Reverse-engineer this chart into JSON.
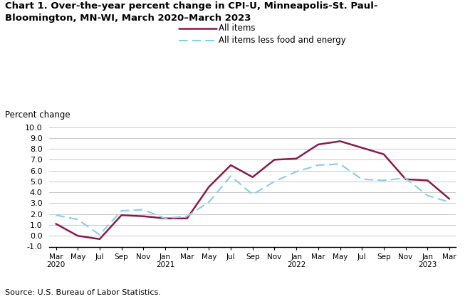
{
  "title_line1": "Chart 1. Over-the-year percent change in CPI-U, Minneapolis-St. Paul-",
  "title_line2": "Bloomington, MN-WI, March 2020–March 2023",
  "ylabel": "Percent change",
  "source": "Source: U.S. Bureau of Labor Statistics.",
  "ylim": [
    -1.0,
    10.0
  ],
  "yticks": [
    -1.0,
    0.0,
    1.0,
    2.0,
    3.0,
    4.0,
    5.0,
    6.0,
    7.0,
    8.0,
    9.0,
    10.0
  ],
  "x_labels": [
    "Mar\n2020",
    "May",
    "Jul",
    "Sep",
    "Nov",
    "Jan\n2021",
    "Mar",
    "May",
    "Jul",
    "Sep",
    "Nov",
    "Jan\n2022",
    "Mar",
    "May",
    "Jul",
    "Sep",
    "Nov",
    "Jan\n2023",
    "Mar"
  ],
  "all_items": [
    1.1,
    0.0,
    -0.3,
    1.9,
    1.8,
    1.6,
    1.6,
    4.5,
    6.5,
    5.4,
    7.0,
    7.1,
    8.4,
    8.7,
    8.1,
    7.5,
    5.2,
    5.1,
    3.4
  ],
  "all_less": [
    1.9,
    1.5,
    0.1,
    2.3,
    2.4,
    1.6,
    1.8,
    3.1,
    5.5,
    3.8,
    5.0,
    5.9,
    6.5,
    6.6,
    5.2,
    5.1,
    5.3,
    3.7,
    3.1
  ],
  "line1_color": "#8B1A4A",
  "line2_color": "#87CEEB",
  "legend_labels": [
    "All items",
    "All items less food and energy"
  ],
  "background_color": "#ffffff"
}
